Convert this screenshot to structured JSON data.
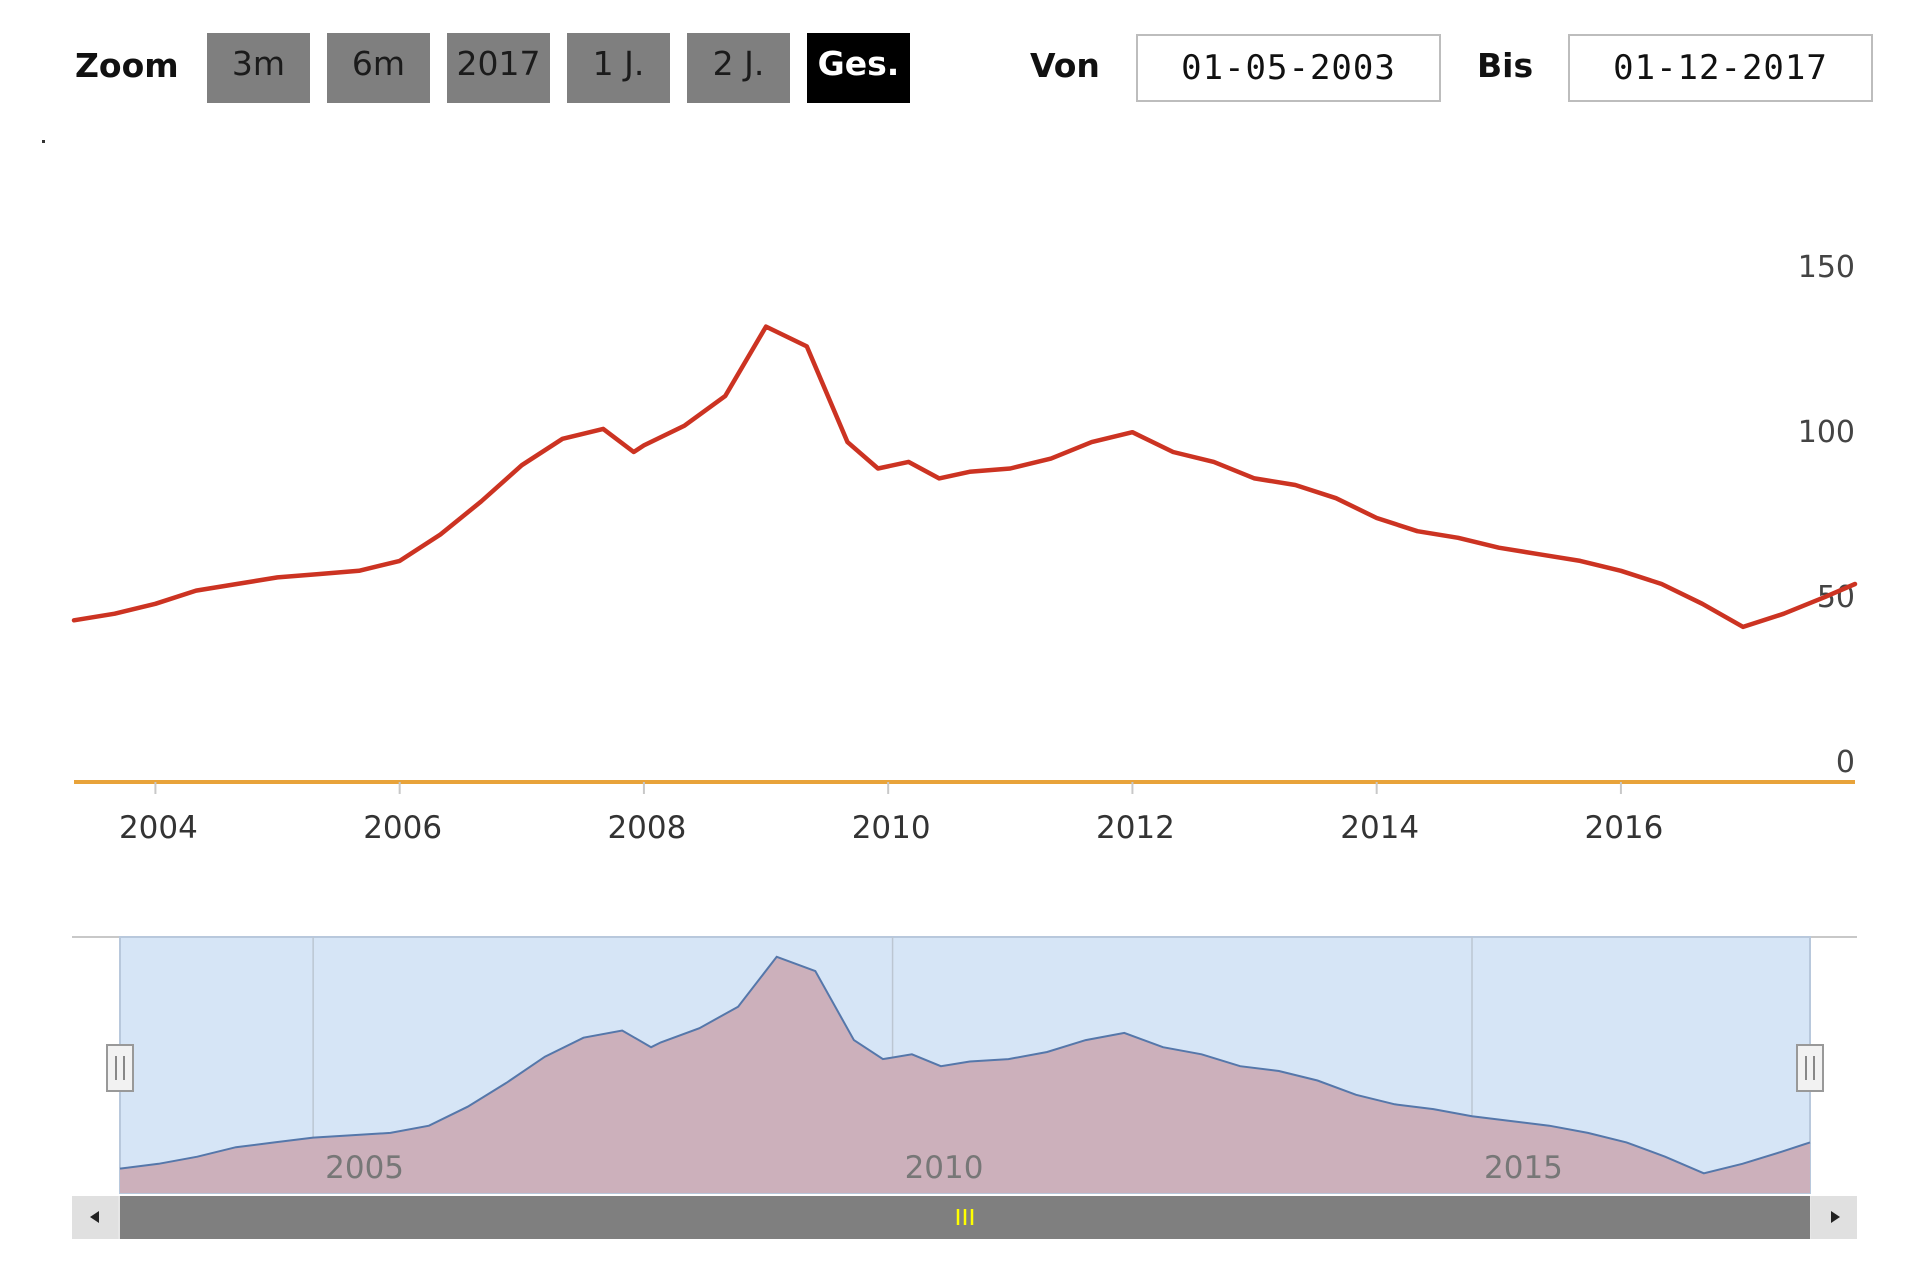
{
  "toolbar": {
    "zoom_label": "Zoom",
    "buttons": [
      "3m",
      "6m",
      "2017",
      "1 J.",
      "2 J.",
      "Ges."
    ],
    "active_button": "Ges.",
    "from_label": "Von",
    "from_value": "01-05-2003",
    "to_label": "Bis",
    "to_value": "01-12-2017"
  },
  "colors": {
    "line": "#cc3322",
    "baseline": "#e8a33a",
    "navigator_fill": "#ccb0bb",
    "navigator_bg": "#d6e5f6",
    "navigator_line": "#5577aa",
    "scrollbar": "#7f7f7f",
    "grip": "#ffff00"
  },
  "chart_data": {
    "type": "line",
    "x_range": [
      "2003-05",
      "2017-12"
    ],
    "ylim": [
      0,
      150
    ],
    "y_ticks": [
      0,
      50,
      100,
      150
    ],
    "x_ticks": [
      "2004",
      "2006",
      "2008",
      "2010",
      "2012",
      "2014",
      "2016"
    ],
    "navigator_ticks": [
      "2005",
      "2010",
      "2015"
    ],
    "grid": false,
    "series": [
      {
        "x": [
          "2003-05",
          "2003-09",
          "2004-01",
          "2004-05",
          "2004-09",
          "2005-01",
          "2005-05",
          "2005-09",
          "2006-01",
          "2006-05",
          "2006-09",
          "2007-01",
          "2007-05",
          "2007-09",
          "2007-12",
          "2008-01",
          "2008-05",
          "2008-09",
          "2009-01",
          "2009-05",
          "2009-09",
          "2009-12",
          "2010-03",
          "2010-06",
          "2010-09",
          "2011-01",
          "2011-05",
          "2011-09",
          "2012-01",
          "2012-05",
          "2012-09",
          "2013-01",
          "2013-05",
          "2013-09",
          "2014-01",
          "2014-05",
          "2014-09",
          "2015-01",
          "2015-05",
          "2015-09",
          "2016-01",
          "2016-05",
          "2016-09",
          "2017-01",
          "2017-05",
          "2017-09",
          "2017-12"
        ],
        "values": [
          49,
          51,
          54,
          58,
          60,
          62,
          63,
          64,
          67,
          75,
          85,
          96,
          104,
          107,
          100,
          102,
          108,
          117,
          138,
          132,
          103,
          95,
          97,
          92,
          94,
          95,
          98,
          103,
          106,
          100,
          97,
          92,
          90,
          86,
          80,
          76,
          74,
          71,
          69,
          67,
          64,
          60,
          54,
          47,
          51,
          56,
          60
        ]
      }
    ]
  }
}
